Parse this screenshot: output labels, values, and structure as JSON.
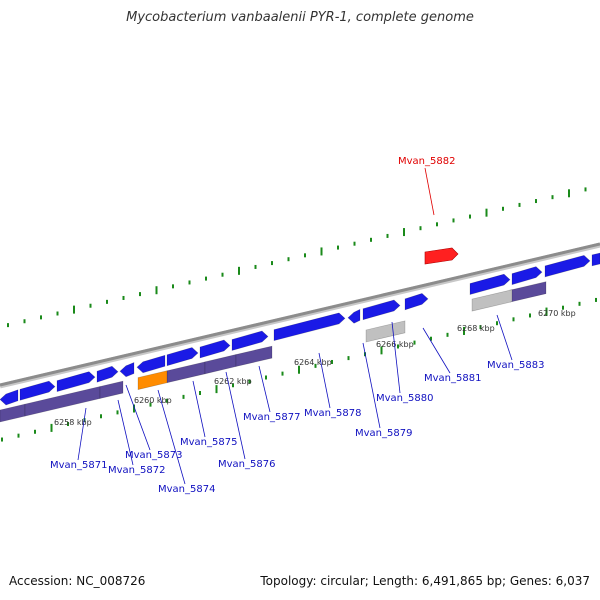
{
  "title": "Mycobacterium vanbaalenii PYR-1, complete genome",
  "footer": {
    "accession": "Accession: NC_008726",
    "summary": "Topology: circular; Length: 6,491,865 bp; Genes: 6,037"
  },
  "colors": {
    "backbone": "#8c8c8c",
    "gene_forward": "#1a1ae6",
    "gene_reverse": "#5a4a9a",
    "gene_highlight": "#ff2020",
    "gene_orange": "#ff8c00",
    "gene_gray": "#c0c0c0",
    "tick": "#1a8a1a",
    "label_normal": "#1010c0",
    "label_highlight": "#e00000"
  },
  "scale_labels": [
    "6258 kbp",
    "6260 kbp",
    "6262 kbp",
    "6264 kbp",
    "6266 kbp",
    "6268 kbp",
    "6270 kbp"
  ],
  "gene_labels": [
    "Mvan_5882",
    "Mvan_5871",
    "Mvan_5872",
    "Mvan_5873",
    "Mvan_5874",
    "Mvan_5875",
    "Mvan_5876",
    "Mvan_5877",
    "Mvan_5878",
    "Mvan_5879",
    "Mvan_5880",
    "Mvan_5881",
    "Mvan_5883"
  ]
}
